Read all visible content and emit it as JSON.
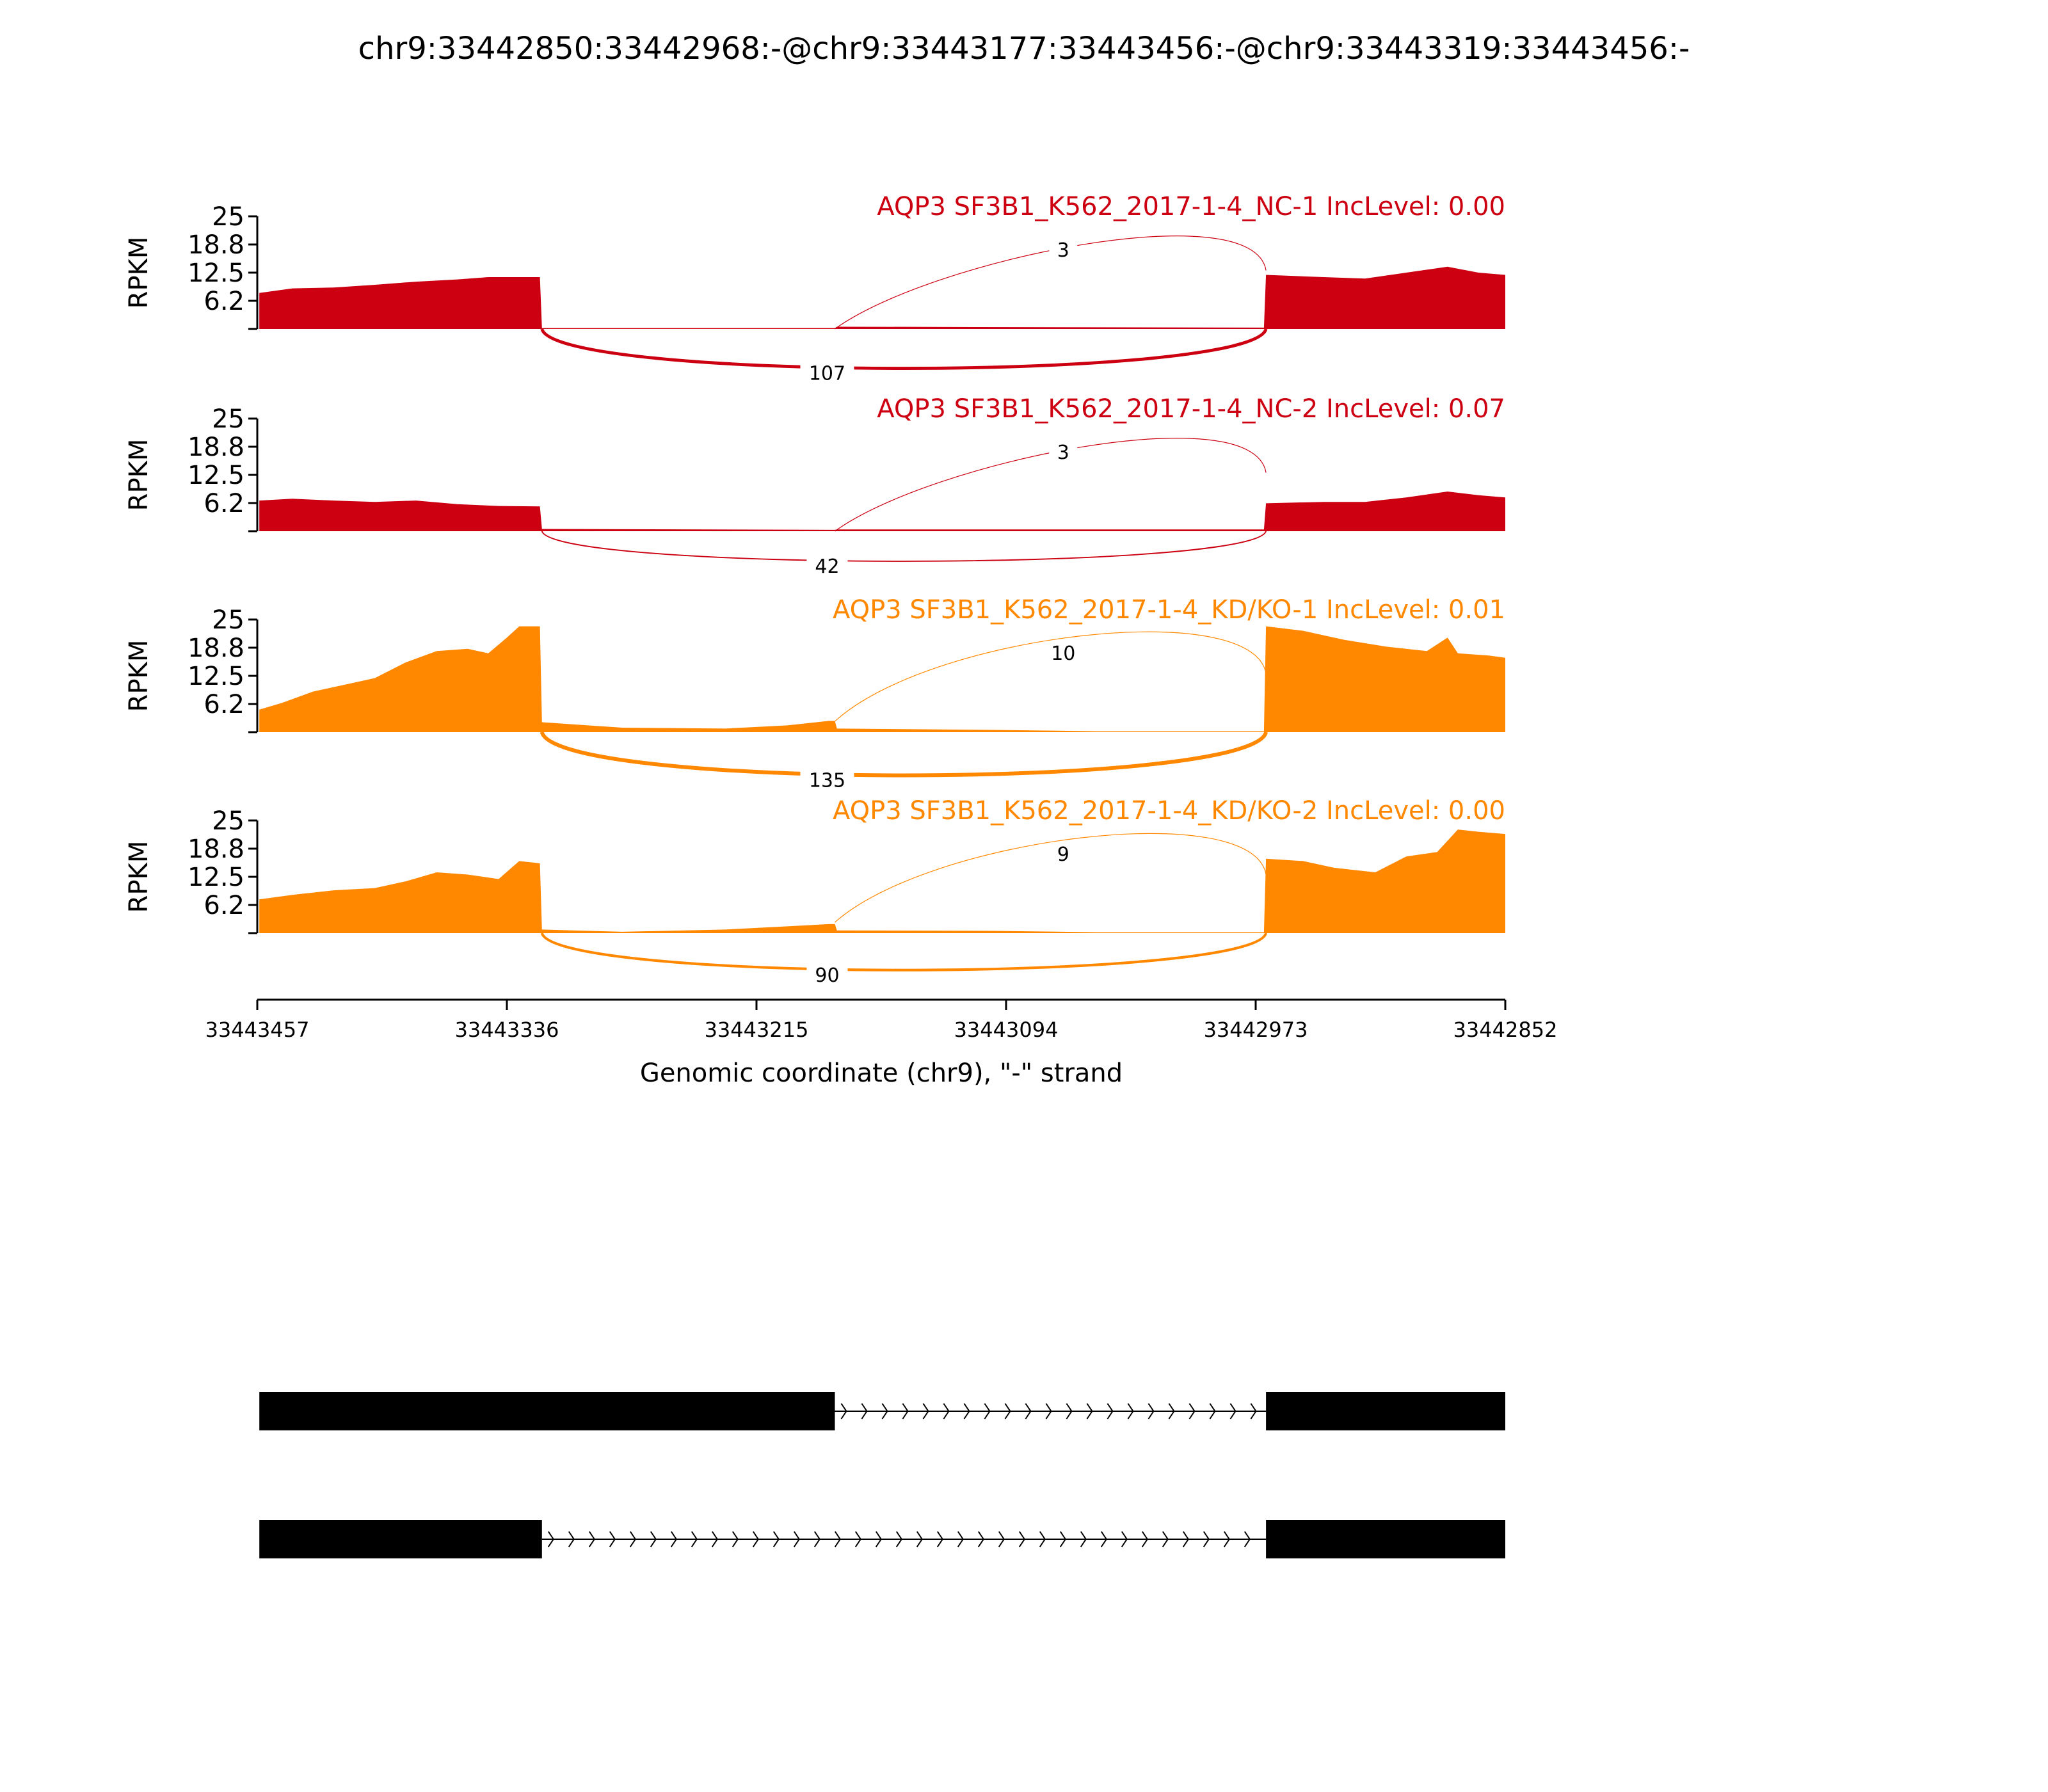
{
  "title": "chr9:33442850:33442968:-@chr9:33443177:33443456:-@chr9:33443319:33443456:-",
  "colors": {
    "nc": "#cc0011",
    "kd": "#ff8800",
    "axis": "#000000",
    "model": "#000000"
  },
  "chart_data": {
    "type": "area",
    "ylabel": "RPKM",
    "ylim": [
      0,
      25
    ],
    "yticks": [
      "6.2",
      "12.5",
      "18.8",
      "25"
    ],
    "yticks_values": [
      6.25,
      12.5,
      18.75,
      25
    ],
    "x_range": [
      33443457,
      33442852
    ],
    "xticks": [
      "33443457",
      "33443336",
      "33443215",
      "33443094",
      "33442973",
      "33442852"
    ],
    "xticks_values": [
      33443457,
      33443336,
      33443215,
      33443094,
      33442973,
      33442852
    ],
    "xlabel": "Genomic coordinate (chr9), \"-\" strand",
    "tracks": [
      {
        "label": "AQP3 SF3B1_K562_2017-1-4_NC-1 IncLevel: 0.00",
        "group": "nc",
        "coverage": [
          {
            "x": 33443456,
            "y": 8.0
          },
          {
            "x": 33443440,
            "y": 9.0
          },
          {
            "x": 33443420,
            "y": 9.2
          },
          {
            "x": 33443400,
            "y": 9.8
          },
          {
            "x": 33443380,
            "y": 10.5
          },
          {
            "x": 33443360,
            "y": 11.0
          },
          {
            "x": 33443345,
            "y": 11.5
          },
          {
            "x": 33443330,
            "y": 11.5
          },
          {
            "x": 33443320,
            "y": 11.5
          },
          {
            "x": 33443319,
            "y": 0.2
          },
          {
            "x": 33443177,
            "y": 0.2
          },
          {
            "x": 33443176,
            "y": 0.5
          },
          {
            "x": 33442969,
            "y": 0.3
          },
          {
            "x": 33442968,
            "y": 12.0
          },
          {
            "x": 33442940,
            "y": 11.5
          },
          {
            "x": 33442920,
            "y": 11.2
          },
          {
            "x": 33442900,
            "y": 12.5
          },
          {
            "x": 33442880,
            "y": 13.8
          },
          {
            "x": 33442865,
            "y": 12.5
          },
          {
            "x": 33442852,
            "y": 12.0
          }
        ],
        "junctions": [
          {
            "from": 33443177,
            "to": 33442968,
            "count": "3",
            "side": "above"
          },
          {
            "from": 33443319,
            "to": 33442968,
            "count": "107",
            "side": "below"
          }
        ]
      },
      {
        "label": "AQP3 SF3B1_K562_2017-1-4_NC-2 IncLevel: 0.07",
        "group": "nc",
        "coverage": [
          {
            "x": 33443456,
            "y": 6.8
          },
          {
            "x": 33443440,
            "y": 7.2
          },
          {
            "x": 33443420,
            "y": 6.8
          },
          {
            "x": 33443400,
            "y": 6.5
          },
          {
            "x": 33443380,
            "y": 6.8
          },
          {
            "x": 33443360,
            "y": 6.0
          },
          {
            "x": 33443340,
            "y": 5.6
          },
          {
            "x": 33443320,
            "y": 5.5
          },
          {
            "x": 33443319,
            "y": 0.5
          },
          {
            "x": 33443177,
            "y": 0.3
          },
          {
            "x": 33443176,
            "y": 0.4
          },
          {
            "x": 33442969,
            "y": 0.4
          },
          {
            "x": 33442968,
            "y": 6.2
          },
          {
            "x": 33442940,
            "y": 6.5
          },
          {
            "x": 33442920,
            "y": 6.5
          },
          {
            "x": 33442900,
            "y": 7.5
          },
          {
            "x": 33442880,
            "y": 8.8
          },
          {
            "x": 33442865,
            "y": 8.0
          },
          {
            "x": 33442852,
            "y": 7.5
          }
        ],
        "junctions": [
          {
            "from": 33443177,
            "to": 33442968,
            "count": "3",
            "side": "above"
          },
          {
            "from": 33443319,
            "to": 33442968,
            "count": "42",
            "side": "below"
          }
        ]
      },
      {
        "label": "AQP3 SF3B1_K562_2017-1-4_KD/KO-1 IncLevel: 0.01",
        "group": "kd",
        "coverage": [
          {
            "x": 33443456,
            "y": 5.0
          },
          {
            "x": 33443445,
            "y": 6.5
          },
          {
            "x": 33443430,
            "y": 9.0
          },
          {
            "x": 33443415,
            "y": 10.5
          },
          {
            "x": 33443400,
            "y": 12.0
          },
          {
            "x": 33443385,
            "y": 15.5
          },
          {
            "x": 33443370,
            "y": 18.0
          },
          {
            "x": 33443355,
            "y": 18.5
          },
          {
            "x": 33443345,
            "y": 17.5
          },
          {
            "x": 33443336,
            "y": 21.0
          },
          {
            "x": 33443330,
            "y": 23.5
          },
          {
            "x": 33443320,
            "y": 23.5
          },
          {
            "x": 33443319,
            "y": 2.2
          },
          {
            "x": 33443280,
            "y": 1.0
          },
          {
            "x": 33443230,
            "y": 0.8
          },
          {
            "x": 33443200,
            "y": 1.5
          },
          {
            "x": 33443180,
            "y": 2.5
          },
          {
            "x": 33443177,
            "y": 2.5
          },
          {
            "x": 33443176,
            "y": 0.8
          },
          {
            "x": 33443100,
            "y": 0.5
          },
          {
            "x": 33443050,
            "y": 0.2
          },
          {
            "x": 33442969,
            "y": 0.2
          },
          {
            "x": 33442968,
            "y": 23.5
          },
          {
            "x": 33442950,
            "y": 22.5
          },
          {
            "x": 33442930,
            "y": 20.5
          },
          {
            "x": 33442910,
            "y": 19.0
          },
          {
            "x": 33442890,
            "y": 18.0
          },
          {
            "x": 33442880,
            "y": 21.0
          },
          {
            "x": 33442875,
            "y": 17.5
          },
          {
            "x": 33442860,
            "y": 17.0
          },
          {
            "x": 33442852,
            "y": 16.5
          }
        ],
        "junctions": [
          {
            "from": 33443177,
            "to": 33442968,
            "count": "10",
            "side": "above"
          },
          {
            "from": 33443319,
            "to": 33442968,
            "count": "135",
            "side": "below"
          }
        ]
      },
      {
        "label": "AQP3 SF3B1_K562_2017-1-4_KD/KO-2 IncLevel: 0.00",
        "group": "kd",
        "coverage": [
          {
            "x": 33443456,
            "y": 7.5
          },
          {
            "x": 33443440,
            "y": 8.5
          },
          {
            "x": 33443420,
            "y": 9.5
          },
          {
            "x": 33443400,
            "y": 10.0
          },
          {
            "x": 33443385,
            "y": 11.5
          },
          {
            "x": 33443370,
            "y": 13.5
          },
          {
            "x": 33443355,
            "y": 13.0
          },
          {
            "x": 33443340,
            "y": 12.0
          },
          {
            "x": 33443330,
            "y": 16.0
          },
          {
            "x": 33443320,
            "y": 15.5
          },
          {
            "x": 33443319,
            "y": 0.8
          },
          {
            "x": 33443280,
            "y": 0.3
          },
          {
            "x": 33443230,
            "y": 0.8
          },
          {
            "x": 33443200,
            "y": 1.5
          },
          {
            "x": 33443180,
            "y": 2.0
          },
          {
            "x": 33443177,
            "y": 2.0
          },
          {
            "x": 33443176,
            "y": 0.6
          },
          {
            "x": 33443100,
            "y": 0.5
          },
          {
            "x": 33443050,
            "y": 0.2
          },
          {
            "x": 33442969,
            "y": 0.2
          },
          {
            "x": 33442968,
            "y": 16.5
          },
          {
            "x": 33442950,
            "y": 16.0
          },
          {
            "x": 33442935,
            "y": 14.5
          },
          {
            "x": 33442915,
            "y": 13.5
          },
          {
            "x": 33442900,
            "y": 17.0
          },
          {
            "x": 33442885,
            "y": 18.0
          },
          {
            "x": 33442875,
            "y": 23.0
          },
          {
            "x": 33442865,
            "y": 22.5
          },
          {
            "x": 33442852,
            "y": 22.0
          }
        ],
        "junctions": [
          {
            "from": 33443177,
            "to": 33442968,
            "count": "9",
            "side": "above"
          },
          {
            "from": 33443319,
            "to": 33442968,
            "count": "90",
            "side": "below"
          }
        ]
      }
    ],
    "gene_models": [
      {
        "exons": [
          [
            33443456,
            33443177
          ],
          [
            33442968,
            33442850
          ]
        ],
        "intron": [
          33443177,
          33442968
        ],
        "strand": "-"
      },
      {
        "exons": [
          [
            33443456,
            33443319
          ],
          [
            33442968,
            33442850
          ]
        ],
        "intron": [
          33443319,
          33442968
        ],
        "strand": "-"
      }
    ]
  }
}
